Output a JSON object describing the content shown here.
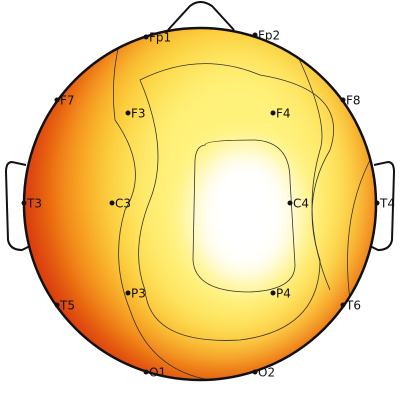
{
  "electrodes": [
    {
      "label": "Fp1"
    },
    {
      "label": "Fp2"
    },
    {
      "label": "F7"
    },
    {
      "label": "F3"
    },
    {
      "label": "F4"
    },
    {
      "label": "F8"
    },
    {
      "label": "T3"
    },
    {
      "label": "C3"
    },
    {
      "label": "C4"
    },
    {
      "label": "T4"
    },
    {
      "label": "T5"
    },
    {
      "label": "P3"
    },
    {
      "label": "P4"
    },
    {
      "label": "T6"
    },
    {
      "label": "O1"
    },
    {
      "label": "O2"
    }
  ]
}
